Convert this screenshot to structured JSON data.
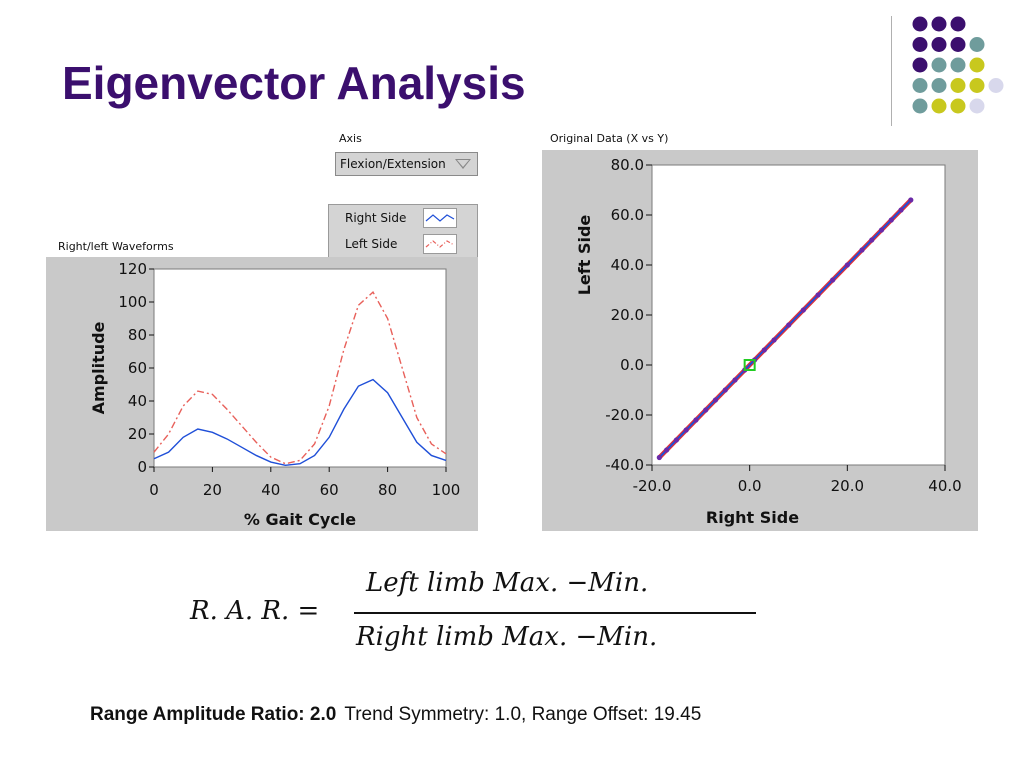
{
  "slide": {
    "title": "Eigenvector Analysis",
    "accent_colors": {
      "purple": "#3b0f6e",
      "teal": "#6f9c9c",
      "olive": "#c8c81e",
      "lavender": "#d8d8ec"
    }
  },
  "controls": {
    "axis_label": "Axis",
    "axis_value": "Flexion/Extension",
    "legend": [
      {
        "name": "Right Side",
        "color": "#1f4fd8",
        "style": "solid"
      },
      {
        "name": "Left Side",
        "color": "#e8605a",
        "style": "dashdot"
      }
    ]
  },
  "chart_data": [
    {
      "type": "line",
      "title": "Right/left Waveforms",
      "xlabel": "% Gait Cycle",
      "ylabel": "Amplitude",
      "xlim": [
        0,
        100
      ],
      "ylim": [
        0,
        120
      ],
      "xticks": [
        "0",
        "20",
        "40",
        "60",
        "80",
        "100"
      ],
      "yticks": [
        "0",
        "20",
        "40",
        "60",
        "80",
        "100",
        "120"
      ],
      "x": [
        0,
        5,
        10,
        15,
        20,
        25,
        30,
        35,
        40,
        45,
        50,
        55,
        60,
        65,
        70,
        75,
        80,
        85,
        90,
        95,
        100
      ],
      "series": [
        {
          "name": "Right Side",
          "color": "#1f4fd8",
          "values": [
            5,
            9,
            18,
            23,
            21,
            17,
            12,
            7,
            3,
            1,
            2,
            7,
            18,
            35,
            49,
            53,
            45,
            30,
            15,
            7,
            4
          ]
        },
        {
          "name": "Left Side",
          "color": "#e8605a",
          "values": [
            9,
            20,
            37,
            46,
            44,
            35,
            25,
            15,
            6,
            2,
            4,
            14,
            37,
            71,
            98,
            106,
            90,
            60,
            30,
            14,
            8
          ]
        }
      ],
      "grid": false
    },
    {
      "type": "scatter",
      "title": "Original Data (X vs Y)",
      "xlabel": "Right Side",
      "ylabel": "Left Side",
      "xlim": [
        -20,
        40
      ],
      "ylim": [
        -40,
        80
      ],
      "xticks": [
        "-20.0",
        "0.0",
        "20.0",
        "40.0"
      ],
      "yticks": [
        "-40.0",
        "-20.0",
        "0.0",
        "20.0",
        "40.0",
        "60.0",
        "80.0"
      ],
      "line": {
        "x": [
          -18.5,
          33
        ],
        "y": [
          -37,
          66
        ]
      },
      "points_x": [
        -18.5,
        -17,
        -15,
        -13,
        -11,
        -9,
        -7,
        -5,
        -3,
        -1,
        1,
        3,
        5,
        8,
        11,
        14,
        17,
        20,
        23,
        25,
        27,
        29,
        31,
        33
      ],
      "points_y": [
        -37,
        -34,
        -30,
        -26,
        -22,
        -18,
        -14,
        -10,
        -6,
        -2,
        2,
        6,
        10,
        16,
        22,
        28,
        34,
        40,
        46,
        50,
        54,
        58,
        62,
        66
      ],
      "origin_marker": {
        "x": 0,
        "y": 0,
        "color": "#22cc22"
      },
      "grid": false
    }
  ],
  "formula": {
    "lhs": "R. A. R. =",
    "numerator": "Left limb Max. −Min.",
    "denominator": "Right limb Max. −Min."
  },
  "footer": {
    "bold": "Range Amplitude Ratio: 2.0",
    "normal": "Trend Symmetry: 1.0, Range Offset: 19.45"
  }
}
